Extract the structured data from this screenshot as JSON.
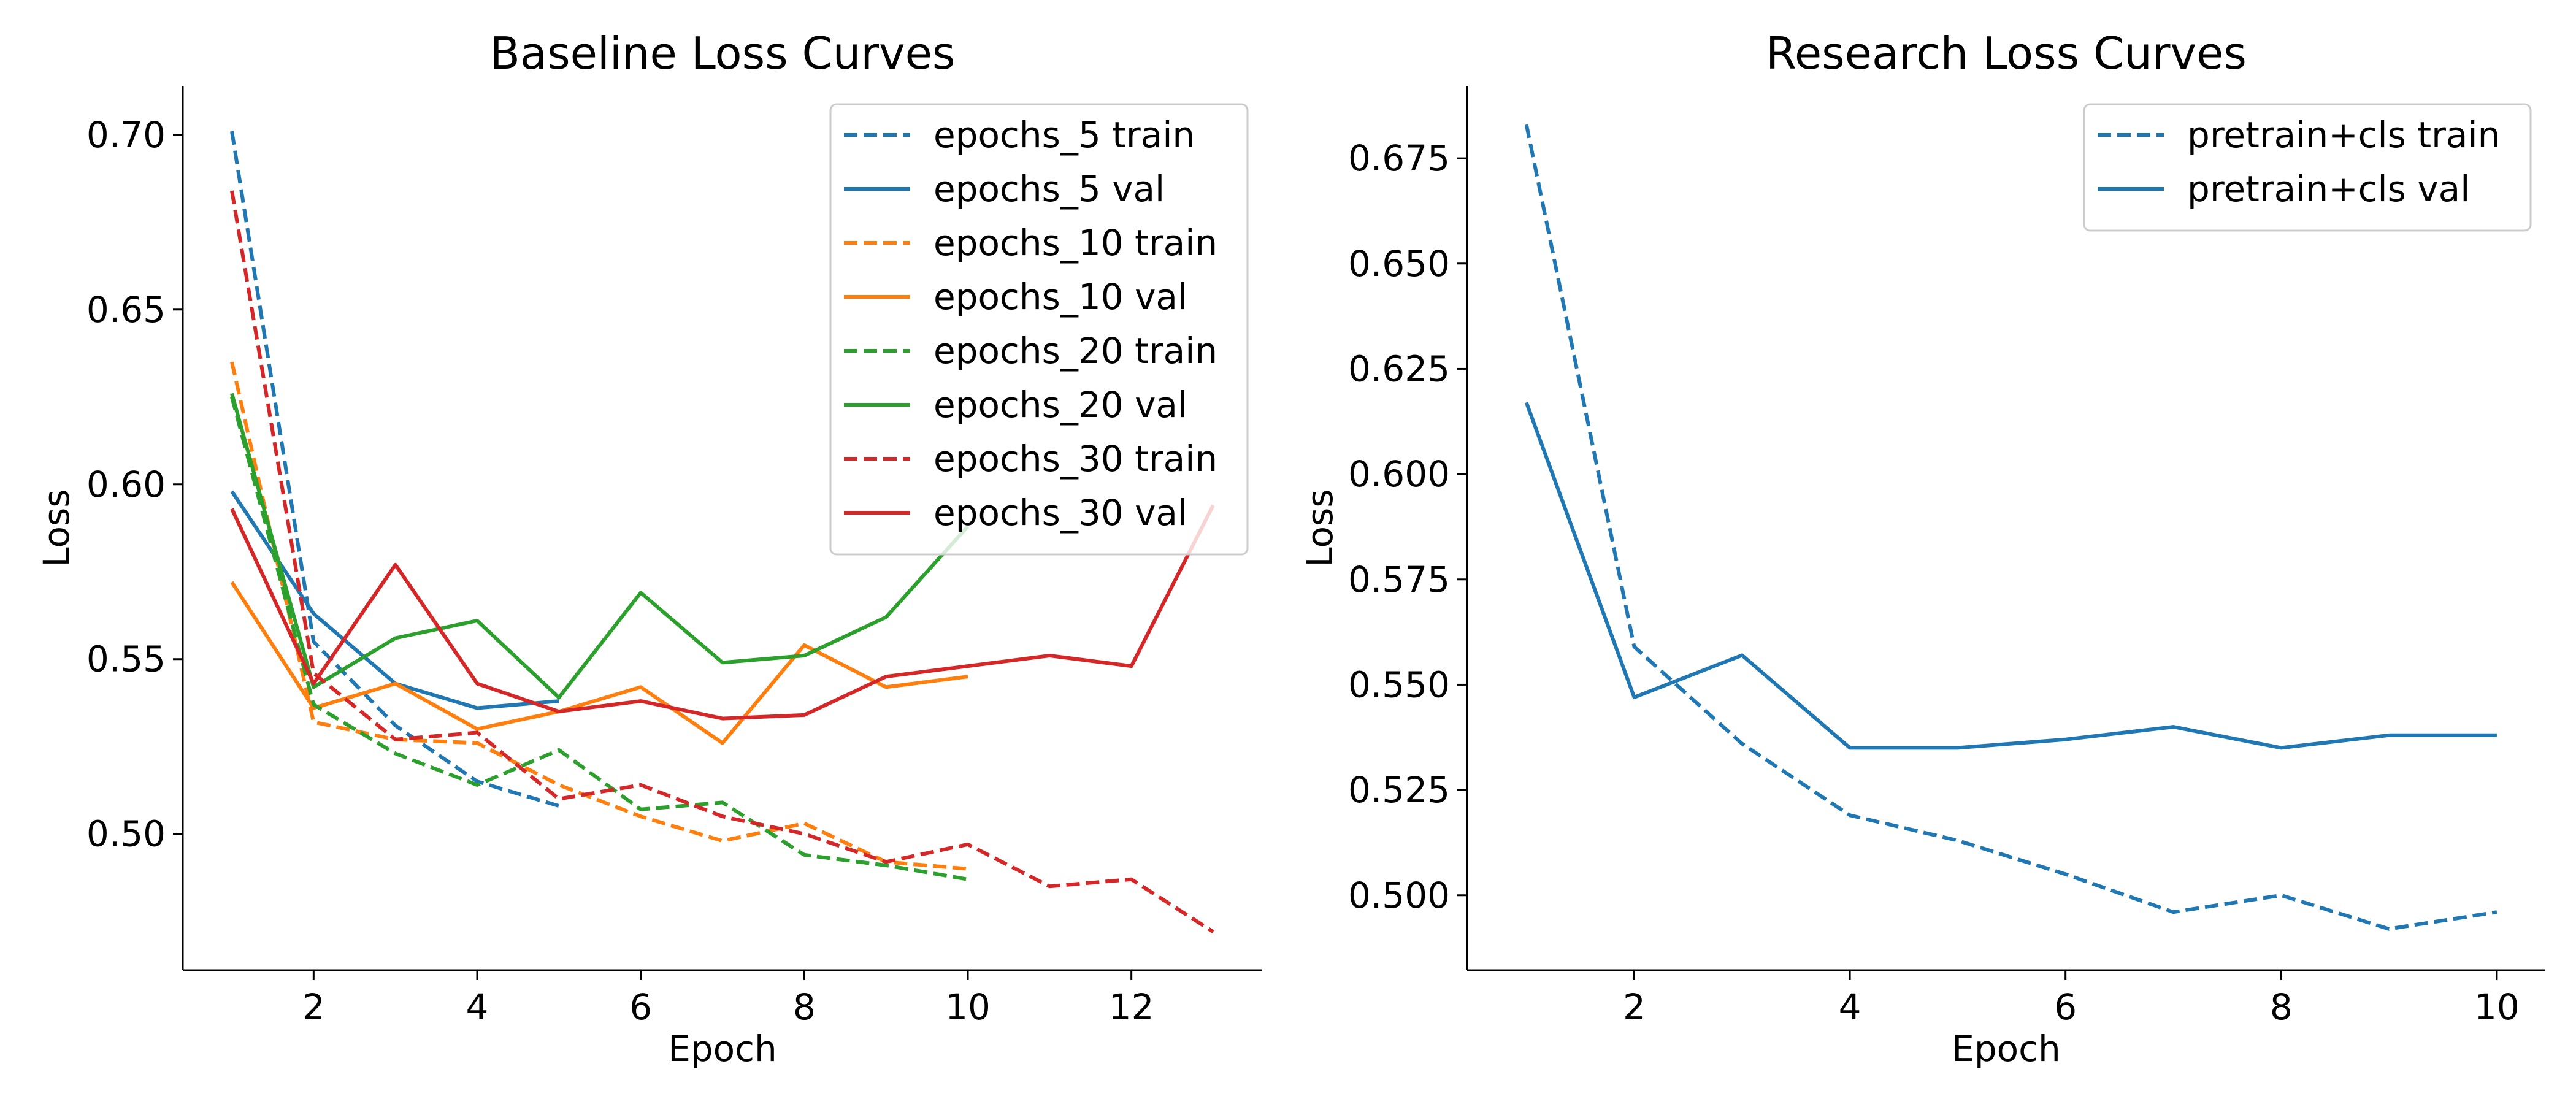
{
  "chart_data": [
    {
      "type": "line",
      "title": "Baseline Loss Curves",
      "xlabel": "Epoch",
      "ylabel": "Loss",
      "xlim": [
        0.4,
        13.6
      ],
      "ylim": [
        0.461,
        0.714
      ],
      "xticks": [
        2,
        4,
        6,
        8,
        10,
        12
      ],
      "xtick_labels": [
        "2",
        "4",
        "6",
        "8",
        "10",
        "12"
      ],
      "yticks": [
        0.5,
        0.55,
        0.6,
        0.65,
        0.7
      ],
      "ytick_labels": [
        "0.50",
        "0.55",
        "0.60",
        "0.65",
        "0.70"
      ],
      "grid": false,
      "legend_position": "top-right",
      "series": [
        {
          "name": "epochs_5 train",
          "color": "#1f77b4",
          "dash": true,
          "x": [
            1,
            2,
            3,
            4,
            5
          ],
          "y": [
            0.701,
            0.555,
            0.531,
            0.515,
            0.508
          ]
        },
        {
          "name": "epochs_5 val",
          "color": "#1f77b4",
          "dash": false,
          "x": [
            1,
            2,
            3,
            4,
            5
          ],
          "y": [
            0.598,
            0.563,
            0.543,
            0.536,
            0.538
          ]
        },
        {
          "name": "epochs_10 train",
          "color": "#ff7f0e",
          "dash": true,
          "x": [
            1,
            2,
            3,
            4,
            5,
            6,
            7,
            8,
            9,
            10
          ],
          "y": [
            0.635,
            0.532,
            0.527,
            0.526,
            0.514,
            0.505,
            0.498,
            0.503,
            0.492,
            0.49
          ]
        },
        {
          "name": "epochs_10 val",
          "color": "#ff7f0e",
          "dash": false,
          "x": [
            1,
            2,
            3,
            4,
            5,
            6,
            7,
            8,
            9,
            10
          ],
          "y": [
            0.572,
            0.536,
            0.543,
            0.53,
            0.535,
            0.542,
            0.526,
            0.554,
            0.542,
            0.545
          ]
        },
        {
          "name": "epochs_20 train",
          "color": "#2ca02c",
          "dash": true,
          "x": [
            1,
            2,
            3,
            4,
            5,
            6,
            7,
            8,
            9,
            10
          ],
          "y": [
            0.625,
            0.537,
            0.523,
            0.514,
            0.524,
            0.507,
            0.509,
            0.494,
            0.491,
            0.487
          ]
        },
        {
          "name": "epochs_20 val",
          "color": "#2ca02c",
          "dash": false,
          "x": [
            1,
            2,
            3,
            4,
            5,
            6,
            7,
            8,
            9,
            10
          ],
          "y": [
            0.626,
            0.542,
            0.556,
            0.561,
            0.539,
            0.569,
            0.549,
            0.551,
            0.562,
            0.588
          ]
        },
        {
          "name": "epochs_30 train",
          "color": "#d62728",
          "dash": true,
          "x": [
            1,
            2,
            3,
            4,
            5,
            6,
            7,
            8,
            9,
            10,
            11,
            12,
            13
          ],
          "y": [
            0.684,
            0.546,
            0.527,
            0.529,
            0.51,
            0.514,
            0.505,
            0.5,
            0.492,
            0.497,
            0.485,
            0.487,
            0.472
          ]
        },
        {
          "name": "epochs_30 val",
          "color": "#d62728",
          "dash": false,
          "x": [
            1,
            2,
            3,
            4,
            5,
            6,
            7,
            8,
            9,
            10,
            11,
            12,
            13
          ],
          "y": [
            0.593,
            0.543,
            0.577,
            0.543,
            0.535,
            0.538,
            0.533,
            0.534,
            0.545,
            0.548,
            0.551,
            0.548,
            0.594
          ]
        }
      ]
    },
    {
      "type": "line",
      "title": "Research Loss Curves",
      "xlabel": "Epoch",
      "ylabel": "Loss",
      "xlim": [
        0.45,
        10.45
      ],
      "ylim": [
        0.4822,
        0.6922
      ],
      "xticks": [
        2,
        4,
        6,
        8,
        10
      ],
      "xtick_labels": [
        "2",
        "4",
        "6",
        "8",
        "10"
      ],
      "yticks": [
        0.5,
        0.525,
        0.55,
        0.575,
        0.6,
        0.625,
        0.65,
        0.675
      ],
      "ytick_labels": [
        "0.500",
        "0.525",
        "0.550",
        "0.575",
        "0.600",
        "0.625",
        "0.650",
        "0.675"
      ],
      "grid": false,
      "legend_position": "top-right",
      "series": [
        {
          "name": "pretrain+cls train",
          "color": "#1f77b4",
          "dash": true,
          "x": [
            1,
            2,
            3,
            4,
            5,
            6,
            7,
            8,
            9,
            10
          ],
          "y": [
            0.683,
            0.559,
            0.536,
            0.519,
            0.513,
            0.505,
            0.496,
            0.5,
            0.492,
            0.496
          ]
        },
        {
          "name": "pretrain+cls val",
          "color": "#1f77b4",
          "dash": false,
          "x": [
            1,
            2,
            3,
            4,
            5,
            6,
            7,
            8,
            9,
            10
          ],
          "y": [
            0.617,
            0.547,
            0.557,
            0.535,
            0.535,
            0.537,
            0.54,
            0.535,
            0.538,
            0.538
          ]
        }
      ]
    }
  ]
}
